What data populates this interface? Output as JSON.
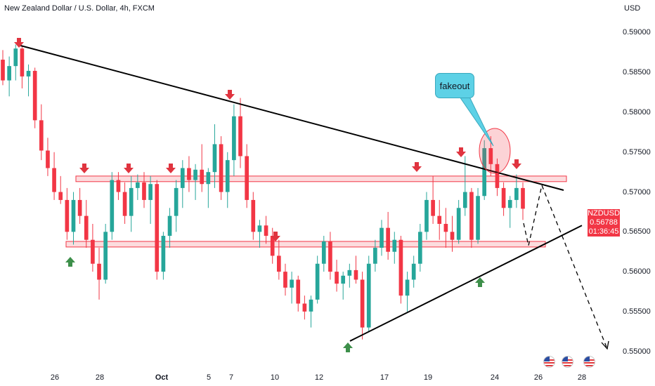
{
  "header": {
    "title": "New Zealand Dollar / U.S. Dollar, 4h, FXCM",
    "currency": "USD"
  },
  "symbol_tag": {
    "symbol": "NZDUSD",
    "price": "0.56788",
    "countdown": "01:36:45"
  },
  "annotation": {
    "text": "fakeout"
  },
  "colors": {
    "up": "#26a69a",
    "down": "#f23645",
    "zone_fill": "#fbd0d3",
    "zone_border": "#f23645",
    "arrow_down": "#e0343f",
    "arrow_up": "#3d8f4a",
    "callout": "#5dd1e6",
    "trendline": "#000000"
  },
  "icons": [
    "arrow-down-icon",
    "arrow-up-icon",
    "us-flag-icon"
  ],
  "chart_data": {
    "type": "candlestick",
    "title": "New Zealand Dollar / U.S. Dollar, 4h, FXCM",
    "y_unit": "USD",
    "y_ticks": [
      "0.59000",
      "0.58500",
      "0.58000",
      "0.57500",
      "0.57000",
      "0.56500",
      "0.56000",
      "0.55500",
      "0.55000"
    ],
    "x_ticks": [
      "26",
      "28",
      "Oct",
      "5",
      "7",
      "10",
      "12",
      "17",
      "19",
      "24",
      "26",
      "28"
    ],
    "ylim": [
      0.5483,
      0.5918
    ],
    "grid": false,
    "last_price": 0.56788,
    "resistance_zone": [
      0.5713,
      0.572
    ],
    "support_zone": [
      0.5631,
      0.5638
    ],
    "descending_trendline": [
      {
        "date": "Sep 25",
        "price": 0.5884
      },
      {
        "date": "Oct 26",
        "price": 0.5709
      }
    ],
    "ascending_trendline": [
      {
        "date": "Oct 13",
        "price": 0.5513
      },
      {
        "date": "Oct 27",
        "price": 0.5658
      }
    ],
    "forecast_path": [
      {
        "date": "Oct 25",
        "price": 0.5675
      },
      {
        "date": "Oct 25",
        "price": 0.5635
      },
      {
        "date": "Oct 26",
        "price": 0.5701
      },
      {
        "date": "Oct 28",
        "price": 0.5495
      }
    ],
    "down_arrows_at": [
      0.5886,
      0.572,
      0.572,
      0.5815,
      0.5645,
      0.572,
      0.5748,
      0.5725
    ],
    "up_arrows_at": [
      0.5628,
      0.5595,
      0.5512
    ],
    "annotations": [
      "fakeout"
    ],
    "series": [
      {
        "type": "ohlc",
        "values": [
          [
            0.5866,
            0.5878,
            0.5834,
            0.584
          ],
          [
            0.584,
            0.587,
            0.582,
            0.5858
          ],
          [
            0.5858,
            0.5885,
            0.584,
            0.588
          ],
          [
            0.588,
            0.5884,
            0.583,
            0.5845
          ],
          [
            0.5845,
            0.586,
            0.582,
            0.5852
          ],
          [
            0.5852,
            0.5856,
            0.578,
            0.579
          ],
          [
            0.579,
            0.581,
            0.574,
            0.5752
          ],
          [
            0.5752,
            0.5768,
            0.572,
            0.573
          ],
          [
            0.573,
            0.575,
            0.569,
            0.57
          ],
          [
            0.57,
            0.572,
            0.5685,
            0.569
          ],
          [
            0.569,
            0.5705,
            0.564,
            0.565
          ],
          [
            0.565,
            0.57,
            0.5634,
            0.569
          ],
          [
            0.569,
            0.5705,
            0.566,
            0.567
          ],
          [
            0.567,
            0.569,
            0.563,
            0.564
          ],
          [
            0.564,
            0.566,
            0.56,
            0.561
          ],
          [
            0.561,
            0.563,
            0.5565,
            0.559
          ],
          [
            0.559,
            0.566,
            0.5585,
            0.565
          ],
          [
            0.565,
            0.5725,
            0.564,
            0.5715
          ],
          [
            0.5715,
            0.5725,
            0.569,
            0.57
          ],
          [
            0.57,
            0.5712,
            0.566,
            0.567
          ],
          [
            0.567,
            0.572,
            0.565,
            0.5705
          ],
          [
            0.5705,
            0.5722,
            0.569,
            0.5712
          ],
          [
            0.5712,
            0.5725,
            0.568,
            0.569
          ],
          [
            0.569,
            0.572,
            0.566,
            0.571
          ],
          [
            0.571,
            0.5715,
            0.559,
            0.56
          ],
          [
            0.56,
            0.565,
            0.559,
            0.5645
          ],
          [
            0.5645,
            0.568,
            0.563,
            0.567
          ],
          [
            0.567,
            0.5715,
            0.565,
            0.5705
          ],
          [
            0.5705,
            0.574,
            0.568,
            0.573
          ],
          [
            0.573,
            0.5745,
            0.57,
            0.5715
          ],
          [
            0.5715,
            0.5735,
            0.569,
            0.5728
          ],
          [
            0.5728,
            0.576,
            0.57,
            0.571
          ],
          [
            0.571,
            0.573,
            0.568,
            0.5725
          ],
          [
            0.5725,
            0.5785,
            0.5705,
            0.576
          ],
          [
            0.576,
            0.577,
            0.569,
            0.57
          ],
          [
            0.57,
            0.575,
            0.568,
            0.574
          ],
          [
            0.574,
            0.581,
            0.572,
            0.5795
          ],
          [
            0.5795,
            0.5818,
            0.573,
            0.5745
          ],
          [
            0.5745,
            0.576,
            0.568,
            0.569
          ],
          [
            0.569,
            0.57,
            0.564,
            0.565
          ],
          [
            0.565,
            0.5665,
            0.563,
            0.5658
          ],
          [
            0.5658,
            0.567,
            0.5635,
            0.5645
          ],
          [
            0.5645,
            0.5655,
            0.561,
            0.562
          ],
          [
            0.562,
            0.564,
            0.559,
            0.56
          ],
          [
            0.56,
            0.561,
            0.557,
            0.558
          ],
          [
            0.558,
            0.56,
            0.556,
            0.559
          ],
          [
            0.559,
            0.5595,
            0.555,
            0.556
          ],
          [
            0.556,
            0.557,
            0.554,
            0.555
          ],
          [
            0.555,
            0.557,
            0.553,
            0.5565
          ],
          [
            0.5565,
            0.562,
            0.556,
            0.561
          ],
          [
            0.561,
            0.5645,
            0.56,
            0.5638
          ],
          [
            0.5638,
            0.565,
            0.559,
            0.56
          ],
          [
            0.56,
            0.5615,
            0.5575,
            0.5585
          ],
          [
            0.5585,
            0.56,
            0.5565,
            0.5595
          ],
          [
            0.5595,
            0.561,
            0.558,
            0.5602
          ],
          [
            0.5602,
            0.562,
            0.5585,
            0.559
          ],
          [
            0.559,
            0.56,
            0.5515,
            0.553
          ],
          [
            0.553,
            0.562,
            0.5525,
            0.561
          ],
          [
            0.561,
            0.564,
            0.56,
            0.563
          ],
          [
            0.563,
            0.5665,
            0.562,
            0.5655
          ],
          [
            0.5655,
            0.5675,
            0.5615,
            0.5625
          ],
          [
            0.5625,
            0.565,
            0.561,
            0.564
          ],
          [
            0.564,
            0.5645,
            0.556,
            0.557
          ],
          [
            0.557,
            0.56,
            0.555,
            0.559
          ],
          [
            0.559,
            0.562,
            0.558,
            0.561
          ],
          [
            0.561,
            0.566,
            0.56,
            0.565
          ],
          [
            0.565,
            0.57,
            0.564,
            0.569
          ],
          [
            0.569,
            0.572,
            0.566,
            0.567
          ],
          [
            0.567,
            0.569,
            0.564,
            0.566
          ],
          [
            0.566,
            0.568,
            0.563,
            0.565
          ],
          [
            0.565,
            0.567,
            0.5625,
            0.564
          ],
          [
            0.564,
            0.569,
            0.5635,
            0.568
          ],
          [
            0.568,
            0.5745,
            0.567,
            0.57
          ],
          [
            0.57,
            0.5705,
            0.563,
            0.564
          ],
          [
            0.564,
            0.5705,
            0.5635,
            0.5695
          ],
          [
            0.5695,
            0.5765,
            0.569,
            0.5755
          ],
          [
            0.5755,
            0.577,
            0.572,
            0.5735
          ],
          [
            0.5735,
            0.5742,
            0.5695,
            0.5705
          ],
          [
            0.5705,
            0.5712,
            0.567,
            0.568
          ],
          [
            0.568,
            0.5695,
            0.5655,
            0.569
          ],
          [
            0.569,
            0.5722,
            0.568,
            0.5705
          ],
          [
            0.5705,
            0.5712,
            0.5665,
            0.5679
          ]
        ]
      }
    ]
  }
}
